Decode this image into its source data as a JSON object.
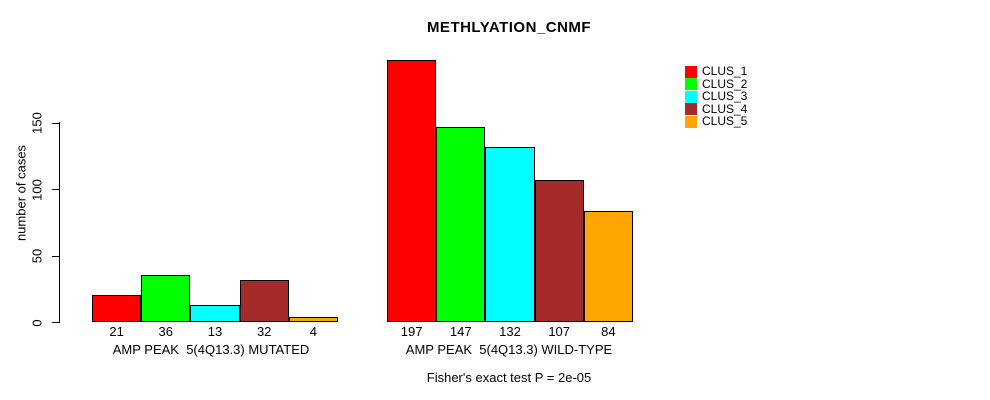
{
  "title": "METHLYATION_CNMF",
  "y_axis": {
    "label": "number of cases",
    "ticks": [
      0,
      50,
      100,
      150
    ]
  },
  "legend": {
    "items": [
      {
        "label": "CLUS_1",
        "color": "#FF0000"
      },
      {
        "label": "CLUS_2",
        "color": "#00FF00"
      },
      {
        "label": "CLUS_3",
        "color": "#00FFFF"
      },
      {
        "label": "CLUS_4",
        "color": "#A52A2A"
      },
      {
        "label": "CLUS_5",
        "color": "#FFA500"
      }
    ]
  },
  "groups": [
    {
      "label": "AMP PEAK  5(4Q13.3) MUTATED",
      "values": [
        21,
        36,
        13,
        32,
        4
      ]
    },
    {
      "label": "AMP PEAK  5(4Q13.3) WILD-TYPE",
      "values": [
        197,
        147,
        132,
        107,
        84
      ]
    }
  ],
  "footer": "Fisher's exact test P = 2e-05",
  "chart_data": {
    "type": "bar",
    "title": "METHLYATION_CNMF",
    "xlabel": "",
    "ylabel": "number of cases",
    "ylim": [
      0,
      150
    ],
    "yticks": [
      0,
      50,
      100,
      150
    ],
    "grid": false,
    "legend_position": "top-right",
    "bar_value_labels": true,
    "categories": [
      "AMP PEAK  5(4Q13.3) MUTATED",
      "AMP PEAK  5(4Q13.3) WILD-TYPE"
    ],
    "series": [
      {
        "name": "CLUS_1",
        "color": "#FF0000",
        "values": [
          21,
          197
        ]
      },
      {
        "name": "CLUS_2",
        "color": "#00FF00",
        "values": [
          36,
          147
        ]
      },
      {
        "name": "CLUS_3",
        "color": "#00FFFF",
        "values": [
          13,
          132
        ]
      },
      {
        "name": "CLUS_4",
        "color": "#A52A2A",
        "values": [
          32,
          107
        ]
      },
      {
        "name": "CLUS_5",
        "color": "#FFA500",
        "values": [
          4,
          84
        ]
      }
    ],
    "annotation": "Fisher's exact test P = 2e-05"
  }
}
